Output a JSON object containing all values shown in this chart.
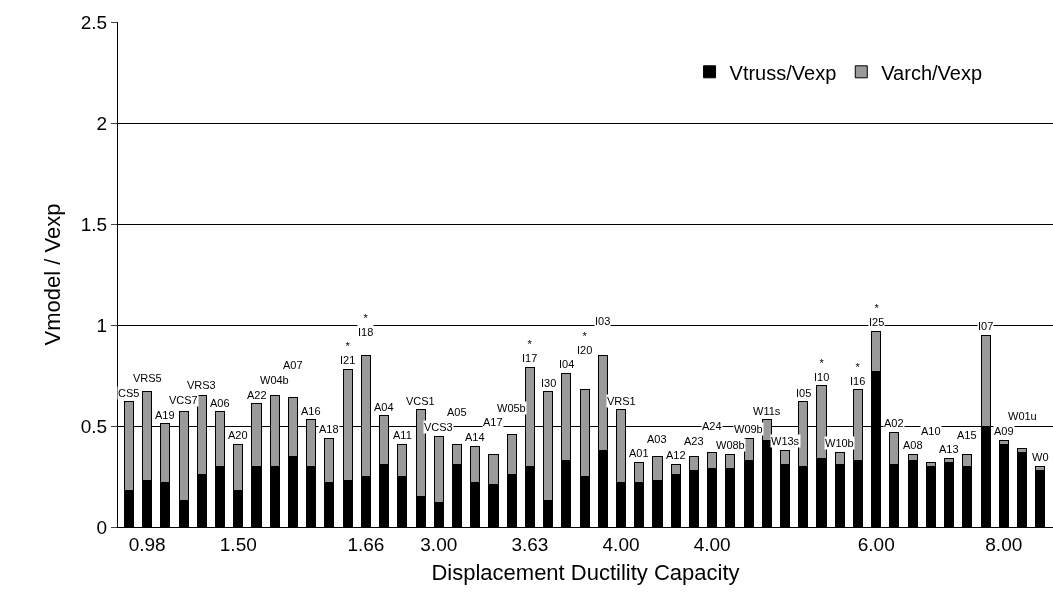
{
  "chart_data": {
    "type": "bar",
    "stacked": true,
    "xlabel": "Displacement Ductility Capacity",
    "ylabel": "Vmodel / Vexp",
    "categories": [
      null,
      "0.98",
      null,
      null,
      null,
      null,
      "1.50",
      null,
      null,
      null,
      null,
      null,
      null,
      "1.66",
      null,
      null,
      null,
      "3.00",
      null,
      null,
      null,
      null,
      "3.63",
      null,
      null,
      null,
      null,
      "4.00",
      null,
      null,
      null,
      null,
      "4.00",
      null,
      null,
      null,
      null,
      null,
      null,
      null,
      null,
      "6.00",
      null,
      null,
      null,
      null,
      null,
      null,
      "8.00",
      null,
      null
    ],
    "series": [
      {
        "name": "Vtruss/Vexp",
        "color": "#000000",
        "values": [
          0.18,
          0.23,
          0.22,
          0.13,
          0.26,
          0.3,
          0.18,
          0.3,
          0.3,
          0.35,
          0.3,
          0.22,
          0.23,
          0.25,
          0.31,
          0.25,
          0.15,
          0.12,
          0.31,
          0.22,
          0.21,
          0.26,
          0.3,
          0.13,
          0.33,
          0.25,
          0.38,
          0.22,
          0.22,
          0.23,
          0.26,
          0.28,
          0.29,
          0.29,
          0.33,
          0.43,
          0.31,
          0.3,
          0.34,
          0.31,
          0.33,
          0.77,
          0.31,
          0.33,
          0.3,
          0.32,
          0.3,
          0.5,
          0.41,
          0.37,
          0.28
        ]
      },
      {
        "name": "Varch/Vexp",
        "color": "#9a9a9a",
        "values": [
          0.44,
          0.44,
          0.29,
          0.44,
          0.39,
          0.27,
          0.23,
          0.31,
          0.35,
          0.29,
          0.23,
          0.22,
          0.55,
          0.6,
          0.24,
          0.16,
          0.43,
          0.33,
          0.1,
          0.18,
          0.15,
          0.2,
          0.49,
          0.54,
          0.43,
          0.43,
          0.47,
          0.36,
          0.1,
          0.12,
          0.05,
          0.07,
          0.08,
          0.07,
          0.11,
          0.1,
          0.07,
          0.32,
          0.36,
          0.06,
          0.35,
          0.2,
          0.16,
          0.03,
          0.02,
          0.02,
          0.06,
          0.45,
          0.02,
          0.02,
          0.02
        ],
        "value_labels": [
          "CS5",
          "VRS5",
          "A19",
          "VCS7",
          "VRS3",
          "A06",
          "A20",
          "A22",
          "W04b",
          "A07",
          "A16",
          "A18",
          "*\nI21",
          "*\nI18",
          "A04",
          "A11",
          "VCS1",
          "VCS3",
          "A05",
          "A14",
          "A17",
          "W05b",
          "*\nI17",
          "I30",
          "I04",
          "*\nI20",
          "I03",
          "VRS1",
          "A01",
          "A03",
          "A12",
          "A23",
          "A24",
          "W08b",
          "W09b",
          "W11s",
          "W13s",
          "I05",
          "*\nI10",
          "W10b",
          "*\nI16",
          "*\nI25",
          "A02",
          "A08",
          "A10",
          "A13",
          "A15",
          "I07",
          "A09",
          "W01u",
          "W0"
        ]
      }
    ],
    "ylim": [
      0,
      2.5
    ],
    "yticks": [
      0,
      0.5,
      1,
      1.5,
      2,
      2.5
    ],
    "grid": "y",
    "legend": "top right"
  }
}
